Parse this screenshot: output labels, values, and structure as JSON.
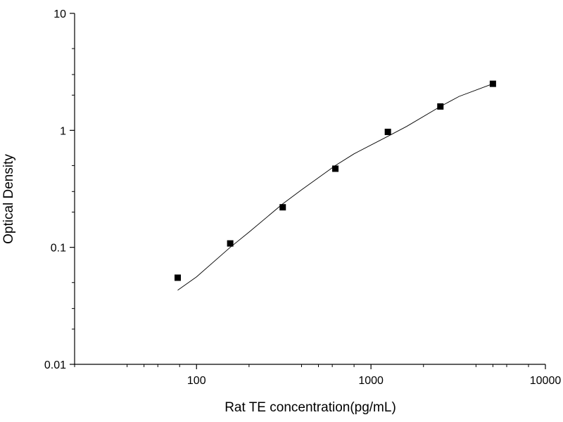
{
  "chart_data": {
    "type": "scatter",
    "title": "",
    "xlabel": "Rat TE concentration(pg/mL)",
    "ylabel": "Optical Density",
    "xscale": "log",
    "yscale": "log",
    "xlim": [
      20,
      10000
    ],
    "ylim": [
      0.01,
      10
    ],
    "grid": false,
    "x_ticks": [
      {
        "value": 100,
        "label": "100"
      },
      {
        "value": 1000,
        "label": "1000"
      },
      {
        "value": 10000,
        "label": "10000"
      }
    ],
    "y_ticks": [
      {
        "value": 0.01,
        "label": "0.01"
      },
      {
        "value": 0.1,
        "label": "0.1"
      },
      {
        "value": 1,
        "label": "1"
      },
      {
        "value": 10,
        "label": "10"
      }
    ],
    "series": [
      {
        "marker": "square",
        "color": "#000000",
        "x": [
          78,
          156,
          312,
          625,
          1250,
          2500,
          5000
        ],
        "y": [
          0.055,
          0.108,
          0.22,
          0.47,
          0.97,
          1.6,
          2.5
        ]
      }
    ],
    "fit_curve": {
      "color": "#000000",
      "x": [
        78,
        100,
        156,
        200,
        312,
        400,
        625,
        800,
        1250,
        1600,
        2500,
        3200,
        5000
      ],
      "y": [
        0.043,
        0.056,
        0.1,
        0.135,
        0.235,
        0.31,
        0.5,
        0.63,
        0.89,
        1.08,
        1.6,
        1.95,
        2.5
      ]
    }
  }
}
